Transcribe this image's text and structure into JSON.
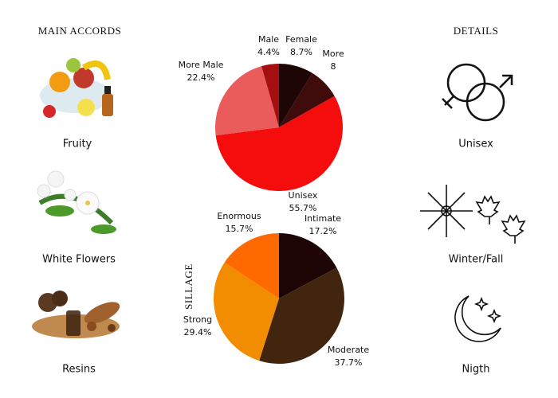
{
  "accords": {
    "title": "MAIN ACCORDS",
    "items": [
      "Fruity",
      "White Flowers",
      "Resins"
    ]
  },
  "details": {
    "title": "DETAILS",
    "items": [
      "Unisex",
      "Winter/Fall",
      "Nigth"
    ]
  },
  "chart_data": [
    {
      "type": "pie",
      "categories": [
        "Female",
        "More",
        "Unisex",
        "More Male",
        "Male"
      ],
      "values": [
        8.7,
        8,
        55.7,
        22.4,
        4.4
      ],
      "value_labels": [
        "8.7%",
        "8",
        "55.7%",
        "22.4%",
        "4.4%"
      ],
      "colors": [
        "#1f0606",
        "#3f0b0b",
        "#f50d0d",
        "#ea5b5b",
        "#a50f0f"
      ]
    },
    {
      "type": "pie",
      "title": "SILLAGE",
      "categories": [
        "Intimate",
        "Moderate",
        "Strong",
        "Enormous"
      ],
      "values": [
        17.2,
        37.7,
        29.4,
        15.7
      ],
      "value_labels": [
        "17.2%",
        "37.7%",
        "29.4%",
        "15.7%"
      ],
      "colors": [
        "#1e0505",
        "#42250f",
        "#f28c00",
        "#ff6a00"
      ]
    }
  ]
}
